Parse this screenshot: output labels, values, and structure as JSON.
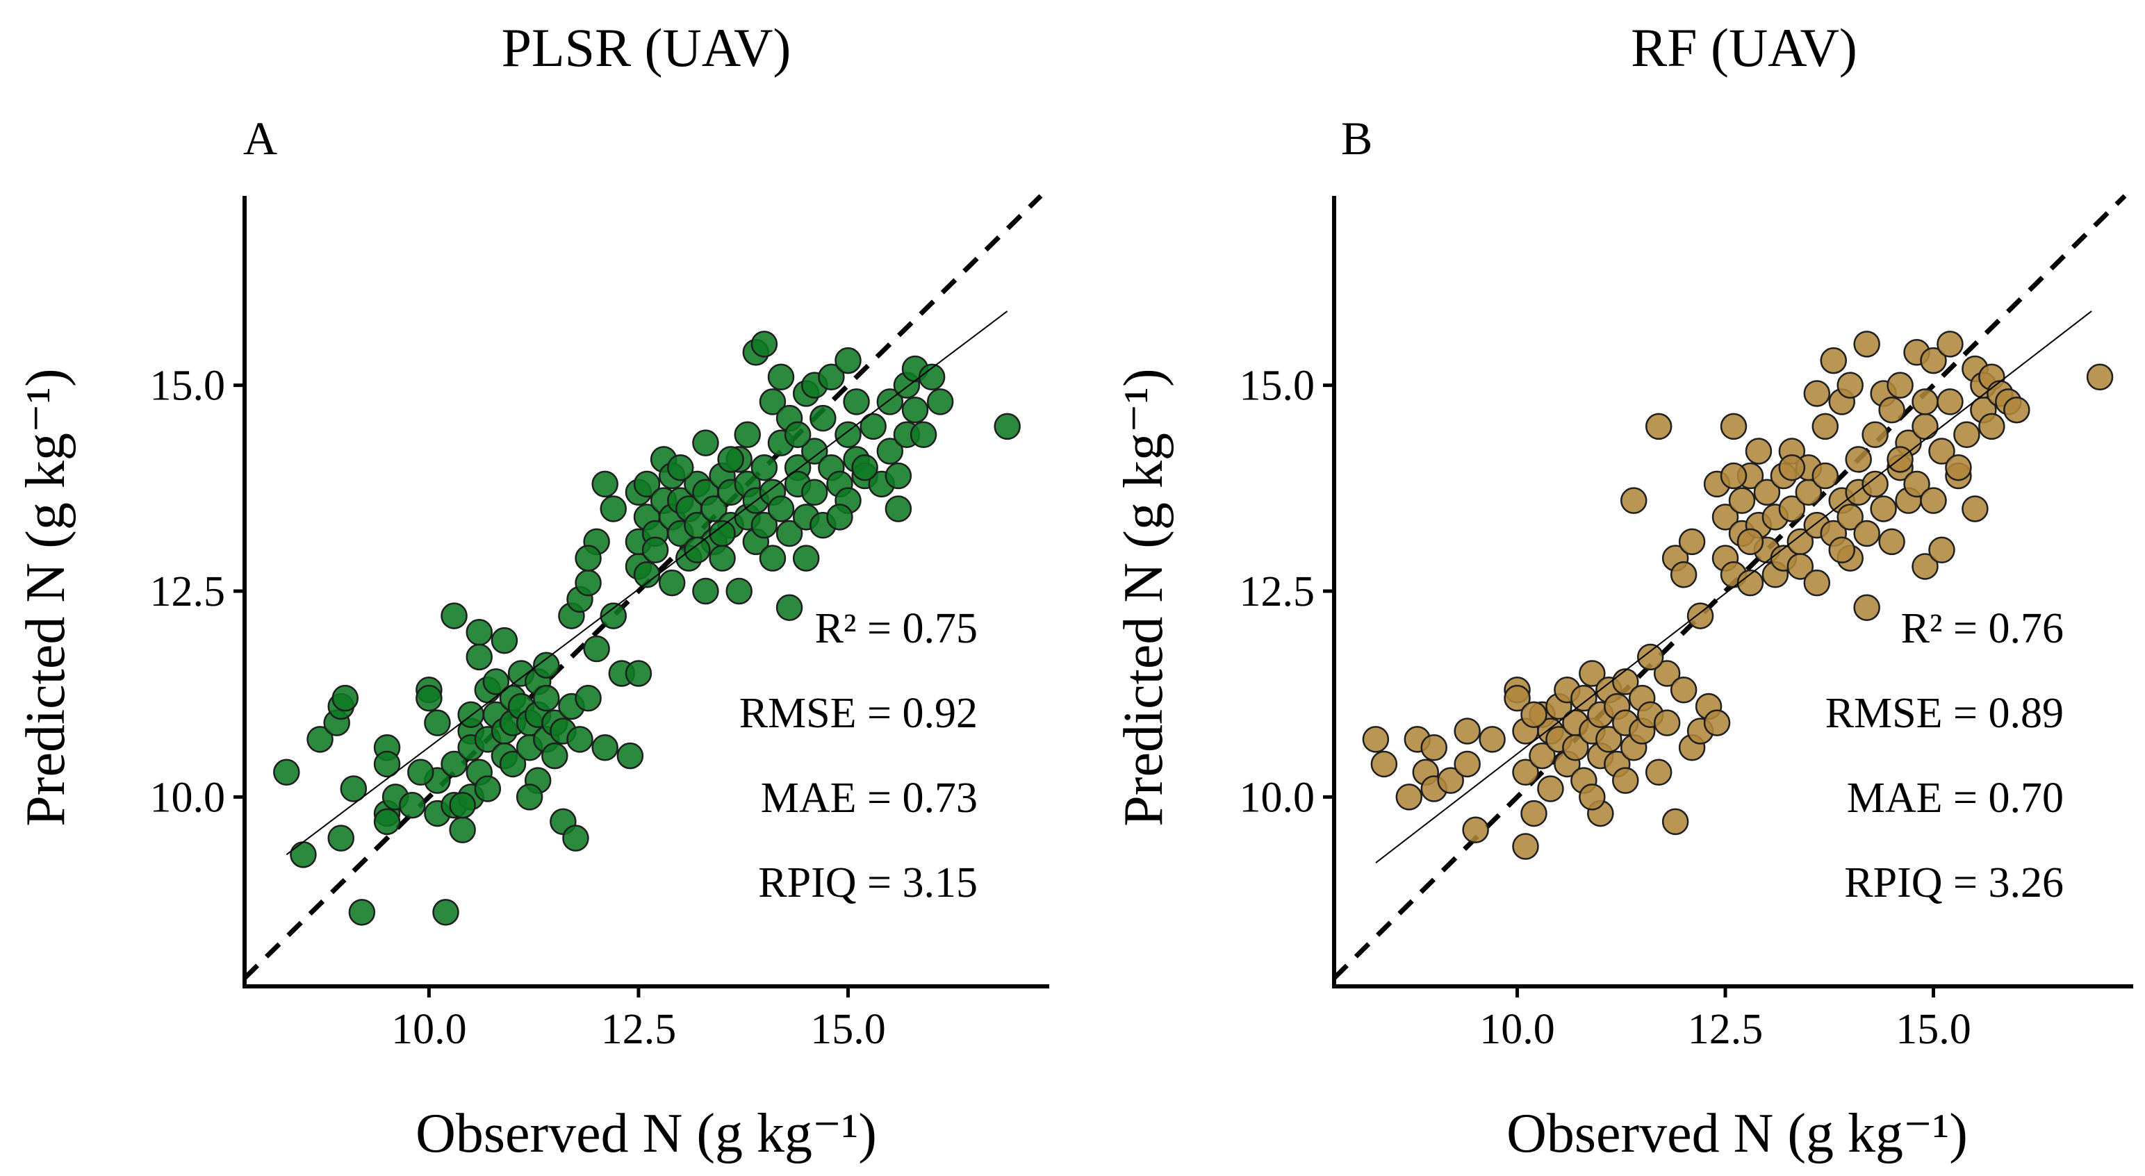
{
  "chart_data": [
    {
      "type": "scatter",
      "panel_label": "A",
      "title": "PLSR (UAV)",
      "xlabel": "Observed N (g kg⁻¹)",
      "ylabel": "Predicted N (g kg⁻¹)",
      "xlim": [
        7.8,
        17.4
      ],
      "ylim": [
        7.7,
        17.3
      ],
      "xticks": [
        "10.0",
        "12.5",
        "15.0"
      ],
      "yticks": [
        "10.0",
        "12.5",
        "15.0"
      ],
      "marker_color": "#0f7a24",
      "reference_line": "1:1 dashed",
      "fit_line": {
        "x": [
          8.3,
          16.9
        ],
        "y": [
          9.3,
          15.9
        ]
      },
      "stats": {
        "r2": "R² = 0.75",
        "rmse": "RMSE = 0.92",
        "mae": "MAE = 0.73",
        "rpiq": "RPIQ = 3.15"
      },
      "points": [
        [
          8.3,
          10.3
        ],
        [
          8.5,
          9.3
        ],
        [
          8.7,
          10.7
        ],
        [
          8.9,
          10.9
        ],
        [
          8.95,
          11.1
        ],
        [
          9.0,
          11.2
        ],
        [
          8.95,
          9.5
        ],
        [
          9.1,
          10.1
        ],
        [
          9.2,
          8.6
        ],
        [
          9.5,
          10.6
        ],
        [
          9.5,
          10.4
        ],
        [
          9.5,
          9.8
        ],
        [
          9.6,
          10.0
        ],
        [
          9.8,
          9.9
        ],
        [
          9.5,
          9.7
        ],
        [
          10.0,
          11.3
        ],
        [
          10.0,
          11.2
        ],
        [
          10.1,
          10.9
        ],
        [
          10.1,
          10.2
        ],
        [
          10.1,
          9.8
        ],
        [
          10.2,
          8.6
        ],
        [
          10.3,
          12.2
        ],
        [
          10.3,
          10.4
        ],
        [
          10.3,
          9.9
        ],
        [
          10.4,
          9.6
        ],
        [
          10.5,
          10.8
        ],
        [
          10.5,
          10.6
        ],
        [
          10.5,
          10.0
        ],
        [
          10.5,
          11.0
        ],
        [
          10.6,
          12.0
        ],
        [
          10.6,
          10.3
        ],
        [
          10.7,
          11.3
        ],
        [
          10.7,
          10.7
        ],
        [
          10.8,
          11.4
        ],
        [
          10.8,
          11.0
        ],
        [
          10.9,
          10.8
        ],
        [
          10.9,
          10.5
        ],
        [
          11.0,
          11.2
        ],
        [
          11.0,
          10.9
        ],
        [
          11.0,
          10.4
        ],
        [
          11.1,
          11.5
        ],
        [
          11.1,
          11.1
        ],
        [
          11.2,
          10.9
        ],
        [
          11.2,
          10.6
        ],
        [
          11.3,
          11.4
        ],
        [
          11.3,
          11.0
        ],
        [
          11.3,
          10.2
        ],
        [
          11.4,
          10.7
        ],
        [
          11.4,
          11.2
        ],
        [
          11.5,
          10.9
        ],
        [
          11.5,
          10.5
        ],
        [
          11.6,
          9.7
        ],
        [
          11.6,
          10.8
        ],
        [
          11.7,
          11.1
        ],
        [
          11.7,
          12.2
        ],
        [
          11.75,
          9.5
        ],
        [
          11.8,
          12.4
        ],
        [
          11.8,
          10.7
        ],
        [
          11.9,
          12.6
        ],
        [
          11.9,
          11.2
        ],
        [
          12.0,
          11.8
        ],
        [
          12.0,
          13.1
        ],
        [
          12.1,
          10.6
        ],
        [
          12.1,
          13.8
        ],
        [
          12.2,
          13.5
        ],
        [
          12.3,
          11.5
        ],
        [
          12.4,
          10.5
        ],
        [
          12.5,
          12.8
        ],
        [
          12.5,
          13.1
        ],
        [
          12.5,
          13.7
        ],
        [
          12.5,
          11.5
        ],
        [
          12.6,
          13.8
        ],
        [
          12.6,
          13.4
        ],
        [
          12.7,
          13.2
        ],
        [
          12.7,
          13.0
        ],
        [
          12.8,
          13.6
        ],
        [
          12.8,
          14.1
        ],
        [
          12.9,
          13.4
        ],
        [
          12.9,
          13.9
        ],
        [
          13.0,
          13.2
        ],
        [
          13.0,
          13.6
        ],
        [
          13.1,
          12.9
        ],
        [
          13.1,
          13.5
        ],
        [
          13.2,
          13.8
        ],
        [
          13.2,
          13.3
        ],
        [
          13.3,
          12.5
        ],
        [
          13.3,
          13.7
        ],
        [
          13.3,
          14.3
        ],
        [
          13.4,
          13.1
        ],
        [
          13.4,
          13.5
        ],
        [
          13.5,
          12.9
        ],
        [
          13.5,
          13.9
        ],
        [
          13.6,
          13.3
        ],
        [
          13.6,
          13.7
        ],
        [
          13.7,
          12.5
        ],
        [
          13.7,
          14.1
        ],
        [
          13.8,
          13.4
        ],
        [
          13.8,
          13.8
        ],
        [
          13.8,
          14.4
        ],
        [
          13.9,
          13.1
        ],
        [
          13.9,
          13.6
        ],
        [
          13.9,
          15.4
        ],
        [
          14.0,
          15.5
        ],
        [
          14.0,
          14.0
        ],
        [
          14.0,
          13.3
        ],
        [
          14.1,
          14.8
        ],
        [
          14.1,
          13.7
        ],
        [
          14.1,
          12.9
        ],
        [
          14.2,
          15.1
        ],
        [
          14.2,
          14.3
        ],
        [
          14.2,
          13.5
        ],
        [
          14.3,
          14.6
        ],
        [
          14.3,
          13.2
        ],
        [
          14.3,
          12.3
        ],
        [
          14.4,
          14.0
        ],
        [
          14.4,
          13.8
        ],
        [
          14.5,
          14.9
        ],
        [
          14.5,
          13.4
        ],
        [
          14.5,
          12.9
        ],
        [
          14.6,
          15.0
        ],
        [
          14.6,
          14.2
        ],
        [
          14.6,
          13.7
        ],
        [
          14.7,
          14.6
        ],
        [
          14.7,
          13.3
        ],
        [
          14.8,
          15.1
        ],
        [
          14.8,
          14.0
        ],
        [
          14.9,
          13.8
        ],
        [
          15.0,
          15.3
        ],
        [
          15.0,
          14.4
        ],
        [
          15.0,
          13.6
        ],
        [
          15.1,
          14.8
        ],
        [
          15.1,
          14.1
        ],
        [
          15.2,
          13.9
        ],
        [
          15.3,
          14.5
        ],
        [
          15.4,
          13.8
        ],
        [
          15.5,
          14.2
        ],
        [
          15.5,
          14.8
        ],
        [
          15.6,
          13.9
        ],
        [
          15.6,
          13.5
        ],
        [
          15.7,
          14.4
        ],
        [
          15.7,
          15.0
        ],
        [
          15.8,
          15.2
        ],
        [
          15.8,
          14.7
        ],
        [
          15.9,
          14.4
        ],
        [
          16.0,
          15.1
        ],
        [
          16.1,
          14.8
        ],
        [
          16.9,
          14.5
        ],
        [
          10.9,
          11.9
        ],
        [
          11.4,
          11.6
        ],
        [
          10.6,
          11.7
        ],
        [
          12.2,
          12.2
        ],
        [
          11.9,
          12.9
        ],
        [
          12.9,
          12.6
        ],
        [
          13.6,
          14.1
        ],
        [
          14.4,
          14.4
        ],
        [
          13.2,
          13.0
        ],
        [
          12.6,
          12.7
        ],
        [
          11.2,
          10.0
        ],
        [
          10.7,
          10.1
        ],
        [
          9.9,
          10.3
        ],
        [
          10.4,
          9.9
        ],
        [
          13.5,
          13.2
        ],
        [
          14.9,
          13.4
        ],
        [
          15.2,
          14.0
        ],
        [
          13.0,
          14.0
        ]
      ]
    },
    {
      "type": "scatter",
      "panel_label": "B",
      "title": "RF (UAV)",
      "xlabel": "Observed N (g kg⁻¹)",
      "ylabel": "Predicted N (g kg⁻¹)",
      "xlim": [
        7.8,
        17.4
      ],
      "ylim": [
        7.7,
        17.3
      ],
      "xticks": [
        "10.0",
        "12.5",
        "15.0"
      ],
      "yticks": [
        "10.0",
        "12.5",
        "15.0"
      ],
      "marker_color": "#b0873c",
      "reference_line": "1:1 dashed",
      "fit_line": {
        "x": [
          8.3,
          16.9
        ],
        "y": [
          9.2,
          15.9
        ]
      },
      "stats": {
        "r2": "R² = 0.76",
        "rmse": "RMSE = 0.89",
        "mae": "MAE = 0.70",
        "rpiq": "RPIQ = 3.26"
      },
      "points": [
        [
          8.3,
          10.7
        ],
        [
          8.4,
          10.4
        ],
        [
          8.7,
          10.0
        ],
        [
          8.8,
          10.7
        ],
        [
          8.9,
          10.3
        ],
        [
          9.0,
          10.6
        ],
        [
          9.0,
          10.1
        ],
        [
          9.2,
          10.2
        ],
        [
          9.4,
          10.4
        ],
        [
          9.4,
          10.8
        ],
        [
          9.5,
          9.6
        ],
        [
          9.7,
          10.7
        ],
        [
          10.0,
          11.3
        ],
        [
          10.0,
          11.2
        ],
        [
          10.1,
          10.8
        ],
        [
          10.1,
          10.3
        ],
        [
          10.1,
          9.4
        ],
        [
          10.2,
          9.8
        ],
        [
          10.3,
          11.0
        ],
        [
          10.3,
          10.5
        ],
        [
          10.4,
          10.8
        ],
        [
          10.4,
          10.1
        ],
        [
          10.5,
          11.1
        ],
        [
          10.5,
          10.7
        ],
        [
          10.6,
          10.4
        ],
        [
          10.6,
          11.3
        ],
        [
          10.7,
          10.9
        ],
        [
          10.7,
          10.6
        ],
        [
          10.8,
          11.2
        ],
        [
          10.8,
          10.2
        ],
        [
          10.9,
          10.8
        ],
        [
          10.9,
          11.5
        ],
        [
          11.0,
          11.0
        ],
        [
          11.0,
          10.5
        ],
        [
          11.0,
          9.8
        ],
        [
          11.1,
          11.3
        ],
        [
          11.1,
          10.7
        ],
        [
          11.2,
          11.1
        ],
        [
          11.2,
          10.4
        ],
        [
          11.3,
          10.9
        ],
        [
          11.3,
          11.4
        ],
        [
          11.4,
          10.6
        ],
        [
          11.4,
          13.6
        ],
        [
          11.5,
          11.2
        ],
        [
          11.5,
          10.8
        ],
        [
          11.6,
          11.0
        ],
        [
          11.7,
          10.3
        ],
        [
          11.7,
          14.5
        ],
        [
          11.8,
          11.5
        ],
        [
          11.8,
          10.9
        ],
        [
          11.9,
          9.7
        ],
        [
          11.9,
          12.9
        ],
        [
          12.0,
          11.3
        ],
        [
          12.0,
          12.7
        ],
        [
          12.1,
          13.1
        ],
        [
          12.1,
          10.6
        ],
        [
          12.2,
          10.8
        ],
        [
          12.3,
          11.1
        ],
        [
          12.4,
          13.8
        ],
        [
          12.5,
          12.9
        ],
        [
          12.5,
          13.4
        ],
        [
          12.6,
          14.5
        ],
        [
          12.6,
          12.7
        ],
        [
          12.7,
          13.6
        ],
        [
          12.7,
          13.2
        ],
        [
          12.8,
          13.9
        ],
        [
          12.8,
          12.6
        ],
        [
          12.9,
          13.3
        ],
        [
          12.9,
          14.2
        ],
        [
          13.0,
          13.0
        ],
        [
          13.0,
          13.7
        ],
        [
          13.1,
          12.7
        ],
        [
          13.1,
          13.4
        ],
        [
          13.2,
          13.9
        ],
        [
          13.2,
          12.9
        ],
        [
          13.3,
          13.5
        ],
        [
          13.3,
          14.2
        ],
        [
          13.4,
          13.1
        ],
        [
          13.4,
          12.8
        ],
        [
          13.5,
          13.7
        ],
        [
          13.5,
          14.0
        ],
        [
          13.6,
          13.3
        ],
        [
          13.6,
          12.6
        ],
        [
          13.7,
          13.9
        ],
        [
          13.7,
          14.5
        ],
        [
          13.8,
          13.2
        ],
        [
          13.8,
          15.3
        ],
        [
          13.9,
          13.6
        ],
        [
          13.9,
          14.8
        ],
        [
          14.0,
          13.4
        ],
        [
          14.0,
          12.9
        ],
        [
          14.0,
          15.0
        ],
        [
          14.1,
          14.1
        ],
        [
          14.1,
          13.7
        ],
        [
          14.2,
          12.3
        ],
        [
          14.2,
          15.5
        ],
        [
          14.3,
          13.8
        ],
        [
          14.3,
          14.4
        ],
        [
          14.4,
          13.5
        ],
        [
          14.4,
          14.9
        ],
        [
          14.5,
          13.1
        ],
        [
          14.5,
          14.7
        ],
        [
          14.6,
          14.0
        ],
        [
          14.6,
          15.0
        ],
        [
          14.7,
          13.6
        ],
        [
          14.7,
          14.3
        ],
        [
          14.8,
          15.4
        ],
        [
          14.8,
          13.8
        ],
        [
          14.9,
          12.8
        ],
        [
          14.9,
          14.5
        ],
        [
          15.0,
          13.6
        ],
        [
          15.0,
          15.3
        ],
        [
          15.1,
          14.2
        ],
        [
          15.1,
          13.0
        ],
        [
          15.2,
          15.5
        ],
        [
          15.2,
          14.8
        ],
        [
          15.3,
          13.9
        ],
        [
          15.4,
          14.4
        ],
        [
          15.5,
          15.2
        ],
        [
          15.5,
          13.5
        ],
        [
          15.6,
          14.7
        ],
        [
          15.6,
          15.0
        ],
        [
          15.7,
          14.5
        ],
        [
          15.7,
          15.1
        ],
        [
          15.8,
          14.9
        ],
        [
          15.9,
          14.8
        ],
        [
          16.0,
          14.7
        ],
        [
          17.0,
          15.1
        ],
        [
          11.6,
          11.7
        ],
        [
          10.9,
          10.0
        ],
        [
          12.2,
          12.2
        ],
        [
          13.6,
          14.9
        ],
        [
          14.9,
          14.8
        ],
        [
          13.3,
          14.0
        ],
        [
          12.8,
          13.1
        ],
        [
          12.4,
          10.9
        ],
        [
          10.2,
          11.0
        ],
        [
          11.3,
          10.2
        ],
        [
          14.2,
          13.2
        ],
        [
          15.3,
          14.0
        ],
        [
          13.9,
          13.0
        ],
        [
          12.6,
          13.9
        ],
        [
          14.6,
          14.1
        ]
      ]
    }
  ]
}
